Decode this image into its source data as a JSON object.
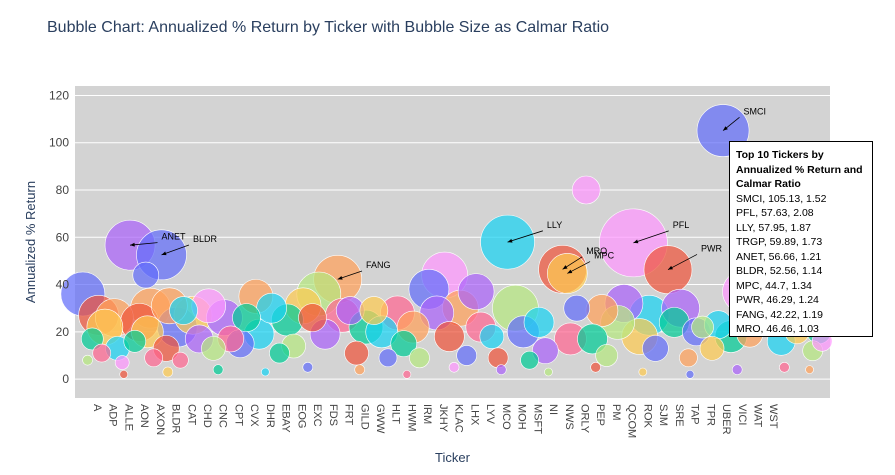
{
  "chart_data": {
    "type": "scatter",
    "title": "Bubble Chart: Annualized % Return by Ticker with Bubble Size as Calmar Ratio",
    "xlabel": "Ticker",
    "ylabel": "Annualized % Return",
    "ylim": [
      -8,
      124
    ],
    "yticks": [
      0,
      20,
      40,
      60,
      80,
      100,
      120
    ],
    "grid": true,
    "plot_bgcolor": "#d3d3d3",
    "tick_labels": [
      "A",
      "ADP",
      "ALLE",
      "AON",
      "AXON",
      "BLDR",
      "CAT",
      "CHD",
      "CNC",
      "CPT",
      "CVX",
      "DHR",
      "EBAY",
      "EOG",
      "EXC",
      "FDS",
      "FRT",
      "GILD",
      "GWW",
      "HLT",
      "HWM",
      "IRM",
      "JKHY",
      "KLAC",
      "LHX",
      "LYV",
      "MCO",
      "MOH",
      "MSFT",
      "NI",
      "NWS",
      "ORLY",
      "PEP",
      "PM",
      "QCOM",
      "ROK",
      "SJM",
      "SRE",
      "TAP",
      "TPR",
      "UBER",
      "VICI",
      "WAT",
      "WST"
    ],
    "highlights": [
      {
        "ticker": "SMCI",
        "x": 40.7,
        "y": 105.13,
        "calmar": 1.52,
        "color": "#636efa"
      },
      {
        "ticker": "PFL",
        "x": 35.0,
        "y": 57.63,
        "calmar": 2.08,
        "color": "#f78fe5"
      },
      {
        "ticker": "LLY",
        "x": 27.0,
        "y": 57.95,
        "calmar": 1.87,
        "color": "#2fd5ec"
      },
      {
        "ticker": "TRGP",
        "x": 43.0,
        "y": 59.89,
        "calmar": 1.73,
        "color": "#ab63fa"
      },
      {
        "ticker": "ANET",
        "x": 3.0,
        "y": 56.66,
        "calmar": 1.21,
        "color": "#ab63fa"
      },
      {
        "ticker": "BLDR",
        "x": 5.0,
        "y": 52.56,
        "calmar": 1.14,
        "color": "#636efa"
      },
      {
        "ticker": "MPC",
        "x": 30.8,
        "y": 44.7,
        "calmar": 1.34,
        "color": "#ef553b"
      },
      {
        "ticker": "PWR",
        "x": 37.2,
        "y": 46.29,
        "calmar": 1.24,
        "color": "#ef553b"
      },
      {
        "ticker": "FANG",
        "x": 16.2,
        "y": 42.22,
        "calmar": 1.19,
        "color": "#ffa15a"
      },
      {
        "ticker": "MRO",
        "x": 30.5,
        "y": 46.46,
        "calmar": 1.03,
        "color": "#ef553b"
      }
    ],
    "annotations": [
      {
        "text": "SMCI",
        "x": 40.7,
        "y": 105.13,
        "tx": 42.0,
        "ty": 112
      },
      {
        "text": "PFL",
        "x": 35.0,
        "y": 57.63,
        "tx": 37.5,
        "ty": 64
      },
      {
        "text": "LLY",
        "x": 27.0,
        "y": 57.95,
        "tx": 29.5,
        "ty": 64
      },
      {
        "text": "ANET",
        "x": 3.0,
        "y": 56.66,
        "tx": 5.0,
        "ty": 59
      },
      {
        "text": "BLDR",
        "x": 5.0,
        "y": 52.56,
        "tx": 7.0,
        "ty": 58
      },
      {
        "text": "MPC",
        "x": 30.8,
        "y": 44.7,
        "tx": 32.5,
        "ty": 51
      },
      {
        "text": "MRO",
        "x": 30.5,
        "y": 46.46,
        "tx": 32.0,
        "ty": 53
      },
      {
        "text": "PWR",
        "x": 37.2,
        "y": 46.29,
        "tx": 39.3,
        "ty": 54
      },
      {
        "text": "FANG",
        "x": 16.2,
        "y": 42.22,
        "tx": 18.0,
        "ty": 47
      }
    ],
    "legend_title": "Top 10 Tickers by Annualized % Return and Calmar Ratio",
    "legend_entries": [
      "SMCI, 105.13, 1.52",
      "PFL, 57.63, 2.08",
      "LLY, 57.95, 1.87",
      "TRGP, 59.89, 1.73",
      "ANET, 56.66, 1.21",
      "BLDR, 52.56, 1.14",
      "MPC, 44.7, 1.34",
      "PWR, 46.29, 1.24",
      "FANG, 42.22, 1.19",
      "MRO, 46.46, 1.03"
    ],
    "legend_placement": "right",
    "colors": [
      "#636efa",
      "#ef553b",
      "#00cc96",
      "#ab63fa",
      "#ffa15a",
      "#19d3f3",
      "#ff6692",
      "#b6e880",
      "#ff97ff",
      "#fecb52"
    ],
    "background_bubbles": [
      [
        0,
        36,
        22,
        0
      ],
      [
        0.6,
        17,
        11,
        2
      ],
      [
        0.3,
        8,
        5,
        7
      ],
      [
        1,
        27,
        20,
        1
      ],
      [
        1.4,
        22,
        18,
        9
      ],
      [
        1.2,
        11,
        9,
        6
      ],
      [
        2,
        26,
        19,
        4
      ],
      [
        2.2,
        13,
        12,
        5
      ],
      [
        2.5,
        7,
        7,
        8
      ],
      [
        3,
        56.66,
        25,
        3
      ],
      [
        3.6,
        24,
        19,
        1
      ],
      [
        3.3,
        16,
        11,
        2
      ],
      [
        4,
        44,
        13,
        0
      ],
      [
        4.3,
        30,
        20,
        4
      ],
      [
        4.1,
        20,
        16,
        9
      ],
      [
        4.5,
        9,
        9,
        6
      ],
      [
        5,
        52.56,
        25,
        0
      ],
      [
        5.5,
        31,
        18,
        4
      ],
      [
        5.3,
        13,
        13,
        1
      ],
      [
        6,
        22,
        20,
        0
      ],
      [
        6.4,
        29,
        14,
        5
      ],
      [
        6.2,
        8,
        8,
        6
      ],
      [
        7,
        27,
        19,
        9
      ],
      [
        7.4,
        17,
        14,
        3
      ],
      [
        8,
        31,
        17,
        8
      ],
      [
        8.3,
        13,
        12,
        7
      ],
      [
        9,
        26,
        18,
        3
      ],
      [
        9.4,
        17,
        13,
        6
      ],
      [
        10,
        15,
        14,
        0
      ],
      [
        10.4,
        26,
        14,
        2
      ],
      [
        11,
        35,
        17,
        4
      ],
      [
        11.2,
        19,
        15,
        5
      ],
      [
        12,
        30,
        15,
        5
      ],
      [
        12.5,
        11,
        10,
        2
      ],
      [
        13,
        25,
        16,
        2
      ],
      [
        13.4,
        14,
        12,
        7
      ],
      [
        14,
        31,
        18,
        9
      ],
      [
        14.6,
        26,
        14,
        1
      ],
      [
        15,
        36,
        22,
        7
      ],
      [
        15.4,
        19,
        15,
        3
      ],
      [
        16.2,
        42.22,
        24,
        4
      ],
      [
        16.5,
        27,
        17,
        6
      ],
      [
        17,
        29,
        14,
        3
      ],
      [
        17.4,
        11,
        12,
        1
      ],
      [
        18,
        22,
        17,
        2
      ],
      [
        18.5,
        29,
        14,
        9
      ],
      [
        19,
        20,
        16,
        5
      ],
      [
        19.4,
        9,
        9,
        0
      ],
      [
        20,
        28,
        17,
        6
      ],
      [
        20.4,
        15,
        13,
        2
      ],
      [
        21,
        22,
        16,
        4
      ],
      [
        21.4,
        9,
        10,
        7
      ],
      [
        22,
        38,
        20,
        0
      ],
      [
        22.5,
        28,
        17,
        3
      ],
      [
        23,
        44,
        23,
        8
      ],
      [
        23.3,
        18,
        15,
        1
      ],
      [
        24,
        30,
        18,
        4
      ],
      [
        24.4,
        10,
        10,
        0
      ],
      [
        25,
        37,
        18,
        3
      ],
      [
        25.3,
        22,
        15,
        6
      ],
      [
        26,
        18,
        12,
        5
      ],
      [
        26.4,
        9,
        10,
        1
      ],
      [
        27,
        57.95,
        27,
        5
      ],
      [
        27.5,
        30,
        23,
        7
      ],
      [
        28,
        20,
        16,
        0
      ],
      [
        28.4,
        8,
        9,
        2
      ],
      [
        29,
        24,
        15,
        5
      ],
      [
        29.4,
        12,
        13,
        3
      ],
      [
        30.5,
        46.46,
        24,
        1
      ],
      [
        30.8,
        44.7,
        20,
        9
      ],
      [
        31,
        17,
        16,
        6
      ],
      [
        31.4,
        30,
        13,
        0
      ],
      [
        32,
        80,
        14,
        8
      ],
      [
        32.4,
        17,
        15,
        2
      ],
      [
        33,
        29,
        16,
        4
      ],
      [
        33.3,
        10,
        11,
        7
      ],
      [
        34,
        24,
        17,
        7
      ],
      [
        34.4,
        32,
        19,
        3
      ],
      [
        35,
        57.63,
        34,
        8
      ],
      [
        35.4,
        18,
        18,
        9
      ],
      [
        36,
        27,
        20,
        5
      ],
      [
        36.4,
        13,
        13,
        0
      ],
      [
        37.2,
        46.29,
        24,
        1
      ],
      [
        37.6,
        24,
        15,
        2
      ],
      [
        38,
        30,
        19,
        3
      ],
      [
        38.5,
        9,
        9,
        4
      ],
      [
        39,
        20,
        14,
        0
      ],
      [
        39.4,
        22,
        11,
        7
      ],
      [
        40,
        13,
        12,
        9
      ],
      [
        40.4,
        23,
        14,
        5
      ],
      [
        40.7,
        105.13,
        26,
        0
      ],
      [
        41.2,
        18,
        16,
        2
      ],
      [
        42,
        37,
        21,
        8
      ],
      [
        42.4,
        19,
        13,
        4
      ],
      [
        43,
        59.89,
        28,
        3
      ],
      [
        43.5,
        27,
        18,
        6
      ],
      [
        44,
        37,
        17,
        1
      ],
      [
        44.4,
        16,
        14,
        5
      ],
      [
        45,
        30,
        16,
        0
      ],
      [
        45.4,
        20,
        12,
        9
      ],
      [
        46,
        26,
        15,
        3
      ],
      [
        46.4,
        12,
        10,
        7
      ],
      [
        46.8,
        20,
        12,
        2
      ],
      [
        47,
        16,
        10,
        8
      ],
      [
        2.6,
        2,
        4,
        1
      ],
      [
        5.4,
        3,
        5,
        9
      ],
      [
        8.6,
        4,
        5,
        2
      ],
      [
        11.6,
        3,
        4,
        5
      ],
      [
        14.3,
        5,
        5,
        0
      ],
      [
        17.6,
        4,
        5,
        4
      ],
      [
        20.6,
        2,
        4,
        6
      ],
      [
        23.6,
        5,
        5,
        8
      ],
      [
        26.6,
        4,
        5,
        3
      ],
      [
        29.6,
        3,
        4,
        7
      ],
      [
        32.6,
        5,
        5,
        1
      ],
      [
        35.6,
        3,
        4,
        9
      ],
      [
        38.6,
        2,
        4,
        0
      ],
      [
        41.6,
        4,
        5,
        3
      ],
      [
        44.6,
        5,
        5,
        6
      ],
      [
        46.2,
        4,
        4,
        4
      ]
    ]
  }
}
